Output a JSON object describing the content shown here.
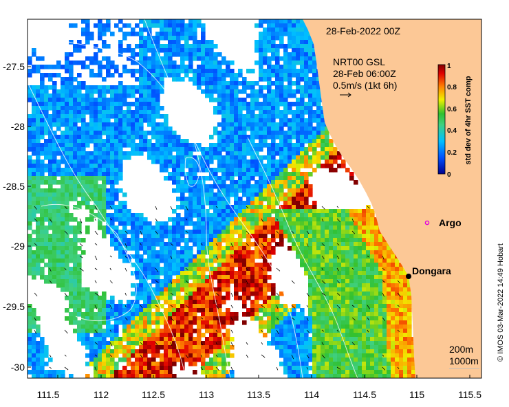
{
  "title": "28-Feb-2022 00Z",
  "current_info": {
    "line1": "NRT00 GSL",
    "line2": "28-Feb 06:00Z",
    "line3": "0.5m/s (1kt 6h)"
  },
  "colorbar": {
    "label": "std dev of 4hr SST comp",
    "ticks": [
      "0",
      "0.2",
      "0.4",
      "0.6",
      "0.8",
      "1"
    ]
  },
  "x_ticks": [
    "111.5",
    "112",
    "112.5",
    "113",
    "113.5",
    "114",
    "114.5",
    "115",
    "115.5"
  ],
  "y_ticks": [
    "-27.5",
    "-28",
    "-28.5",
    "-29",
    "-29.5",
    "-30"
  ],
  "places": [
    {
      "name": "Argo",
      "marker": "open-circle",
      "color": "#e000e0"
    },
    {
      "name": "Dongara",
      "marker": "filled-dot",
      "color": "#000000"
    }
  ],
  "contour_legend": {
    "label_200": "200m",
    "label_1000": "1000m"
  },
  "credit": "© IMOS 03-Mar-2022 14:49 Hobart",
  "colors": {
    "land": "#fcc896",
    "no_data": "#ffffff",
    "frame": "#000000"
  }
}
